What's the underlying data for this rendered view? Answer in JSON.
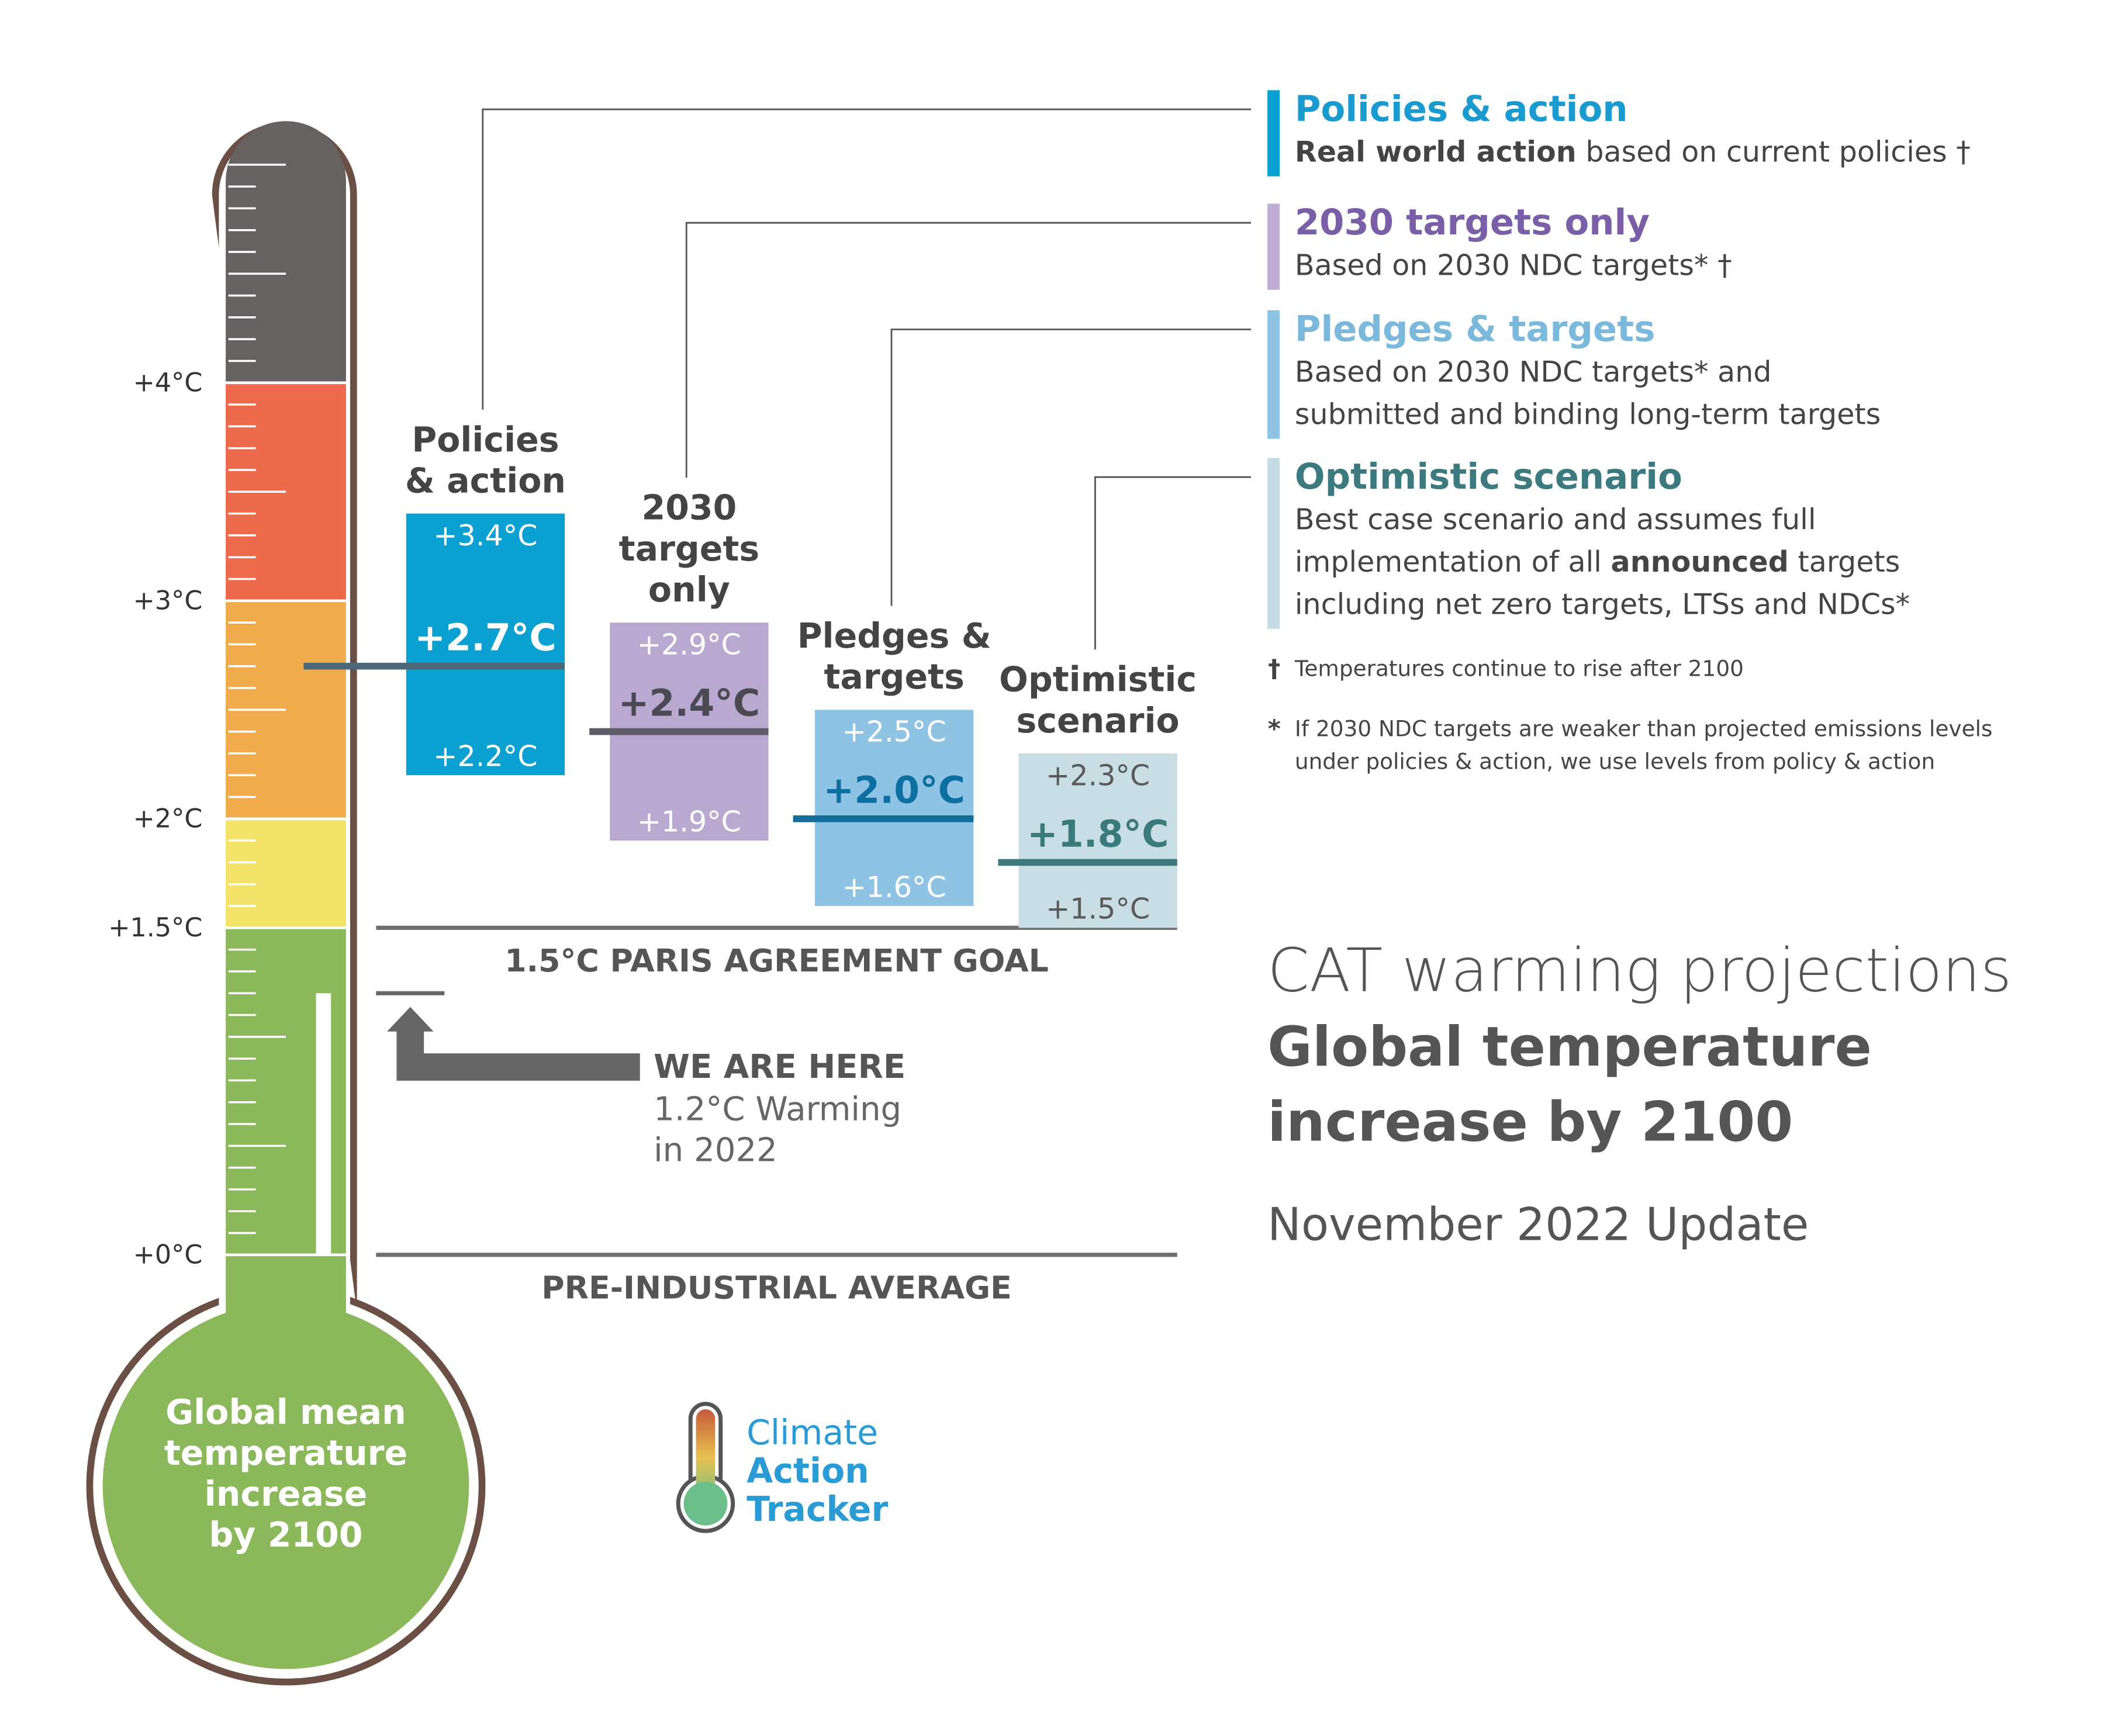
{
  "chart_data": {
    "type": "range",
    "title": "CAT warming projections",
    "subtitle_lines": [
      "Global temperature",
      "increase by 2100"
    ],
    "update": "November 2022 Update",
    "ylim": [
      0,
      5.2
    ],
    "yticks": [
      {
        "value": 0,
        "label": "+0°C"
      },
      {
        "value": 1.5,
        "label": "+1.5°C"
      },
      {
        "value": 2,
        "label": "+2°C"
      },
      {
        "value": 3,
        "label": "+3°C"
      },
      {
        "value": 4,
        "label": "+4°C"
      }
    ],
    "band_colors": [
      "#8cb85c",
      "#f3e36a",
      "#f0ac4c",
      "#ed6a4c",
      "#666261"
    ],
    "bulb_label": [
      "Global mean",
      "temperature",
      "increase",
      "by 2100"
    ],
    "bulb_color": "#8cb85c",
    "outline_color": "#6b4f45",
    "reference_lines": [
      {
        "value": 1.5,
        "label": "1.5°C PARIS AGREEMENT GOAL"
      },
      {
        "value": 0,
        "label": "PRE-INDUSTRIAL AVERAGE"
      }
    ],
    "current": {
      "value": 1.2,
      "heading": "WE ARE HERE",
      "label_lines": [
        "1.2°C Warming",
        "in 2022"
      ],
      "color": "#666666"
    },
    "series": [
      {
        "name": "Policies & action",
        "box_title": [
          "Policies",
          "& action"
        ],
        "description": [
          [
            {
              "text": "Real world action",
              "bold": true
            },
            " based on current policies †"
          ]
        ],
        "values": [
          3.4,
          2.7,
          2.2
        ],
        "value_labels": [
          "+3.4°C",
          "+2.7°C",
          "+2.2°C"
        ],
        "color": "#0aa0d2",
        "line_color": "#4d6878",
        "label_color": "#ffffff",
        "mid_color": "#ffffff",
        "title_color": "#1a9bd0",
        "legend_color": "#0aa0d2"
      },
      {
        "name": "2030 targets only",
        "box_title": [
          "2030",
          "targets",
          "only"
        ],
        "description": [
          [
            "Based on 2030 NDC targets* †"
          ]
        ],
        "values": [
          2.9,
          2.4,
          1.9
        ],
        "value_labels": [
          "+2.9°C",
          "+2.4°C",
          "+1.9°C"
        ],
        "color": "#b9a8d0",
        "line_color": "#5c5d66",
        "label_color": "#ffffff",
        "mid_color": "#4a4a52",
        "title_color": "#7a5ea8",
        "legend_color": "#c1acd6"
      },
      {
        "name": "Pledges & targets",
        "box_title": [
          "Pledges &",
          "targets"
        ],
        "description": [
          [
            "Based on 2030 NDC targets* and"
          ],
          [
            "submitted and binding long-term targets"
          ]
        ],
        "values": [
          2.5,
          2.0,
          1.6
        ],
        "value_labels": [
          "+2.5°C",
          "+2.0°C",
          "+1.6°C"
        ],
        "color": "#8fc3e4",
        "line_color": "#126d9a",
        "label_color": "#ffffff",
        "mid_color": "#0d6fa0",
        "title_color": "#7ab8dc",
        "legend_color": "#8fc3e4"
      },
      {
        "name": "Optimistic scenario",
        "box_title": [
          "Optimistic",
          "scenario"
        ],
        "description": [
          [
            "Best case scenario and assumes full"
          ],
          [
            "implementation of all ",
            {
              "text": "announced",
              "bold": true
            },
            " targets"
          ],
          [
            "including net zero targets, LTSs and NDCs*"
          ]
        ],
        "values": [
          2.3,
          1.8,
          1.5
        ],
        "value_labels": [
          "+2.3°C",
          "+1.8°C",
          "+1.5°C"
        ],
        "color": "#c9dde4",
        "line_color": "#3e7a7c",
        "label_color": "#5a5a5a",
        "mid_color": "#3a7a7a",
        "title_color": "#3d7a80",
        "legend_color": "#c5dbe3"
      }
    ],
    "footnotes": [
      {
        "symbol": "†",
        "lines": [
          "Temperatures continue to rise after 2100"
        ]
      },
      {
        "symbol": "*",
        "lines": [
          "If 2030 NDC targets are weaker than projected emissions levels",
          "under policies & action, we use levels from policy & action"
        ]
      }
    ],
    "logo": [
      "Climate",
      "Action",
      "Tracker"
    ]
  }
}
